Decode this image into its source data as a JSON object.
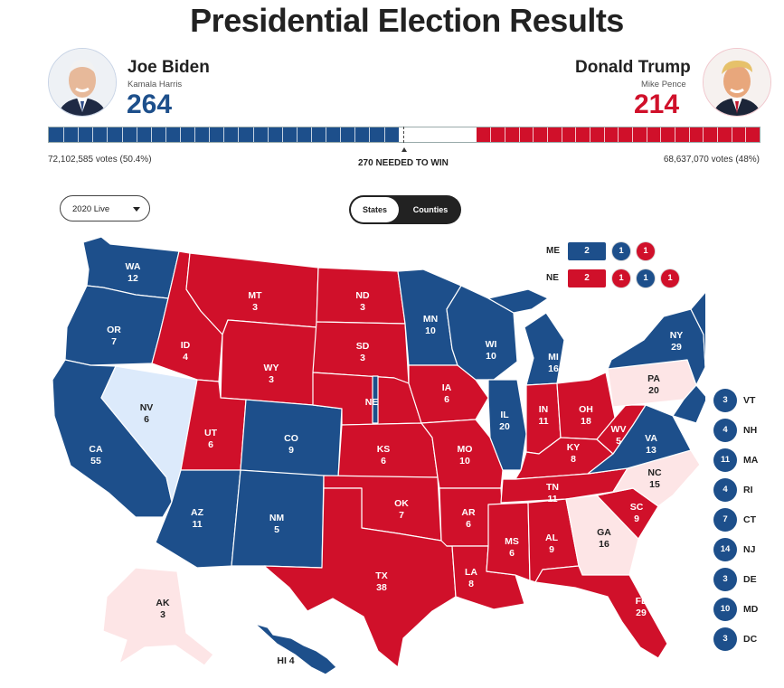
{
  "title": "Presidential Election Results",
  "colors": {
    "dem": "#1d4f8b",
    "rep": "#d0102a",
    "lean_dem": "#dceafb",
    "lean_rep": "#fde5e6"
  },
  "biden": {
    "name": "Joe Biden",
    "vp": "Kamala Harris",
    "electoral": "264",
    "votes": "72,102,585 votes (50.4%)",
    "photo_icon": "biden-portrait"
  },
  "trump": {
    "name": "Donald Trump",
    "vp": "Mike Pence",
    "electoral": "214",
    "votes": "68,637,070 votes (48%)",
    "photo_icon": "trump-portrait"
  },
  "progress": {
    "dem_ev": 264,
    "rep_ev": 214,
    "total_ev": 538,
    "needed": 270
  },
  "needed_label": "270 NEEDED TO WIN",
  "year_select": "2020 Live",
  "toggle": {
    "states": "States",
    "counties": "Counties"
  },
  "states": {
    "WA": {
      "label": "WA",
      "ev": "12"
    },
    "OR": {
      "label": "OR",
      "ev": "7"
    },
    "CA": {
      "label": "CA",
      "ev": "55"
    },
    "NV": {
      "label": "NV",
      "ev": "6"
    },
    "ID": {
      "label": "ID",
      "ev": "4"
    },
    "MT": {
      "label": "MT",
      "ev": "3"
    },
    "WY": {
      "label": "WY",
      "ev": "3"
    },
    "UT": {
      "label": "UT",
      "ev": "6"
    },
    "AZ": {
      "label": "AZ",
      "ev": "11"
    },
    "CO": {
      "label": "CO",
      "ev": "9"
    },
    "NM": {
      "label": "NM",
      "ev": "5"
    },
    "ND": {
      "label": "ND",
      "ev": "3"
    },
    "SD": {
      "label": "SD",
      "ev": "3"
    },
    "NE": {
      "label": "NE",
      "ev": ""
    },
    "KS": {
      "label": "KS",
      "ev": "6"
    },
    "OK": {
      "label": "OK",
      "ev": "7"
    },
    "TX": {
      "label": "TX",
      "ev": "38"
    },
    "MN": {
      "label": "MN",
      "ev": "10"
    },
    "IA": {
      "label": "IA",
      "ev": "6"
    },
    "MO": {
      "label": "MO",
      "ev": "10"
    },
    "AR": {
      "label": "AR",
      "ev": "6"
    },
    "LA": {
      "label": "LA",
      "ev": "8"
    },
    "WI": {
      "label": "WI",
      "ev": "10"
    },
    "IL": {
      "label": "IL",
      "ev": "20"
    },
    "MI": {
      "label": "MI",
      "ev": "16"
    },
    "IN": {
      "label": "IN",
      "ev": "11"
    },
    "OH": {
      "label": "OH",
      "ev": "18"
    },
    "KY": {
      "label": "KY",
      "ev": "8"
    },
    "TN": {
      "label": "TN",
      "ev": "11"
    },
    "MS": {
      "label": "MS",
      "ev": "6"
    },
    "AL": {
      "label": "AL",
      "ev": "9"
    },
    "GA": {
      "label": "GA",
      "ev": "16"
    },
    "FL": {
      "label": "FL",
      "ev": "29"
    },
    "SC": {
      "label": "SC",
      "ev": "9"
    },
    "NC": {
      "label": "NC",
      "ev": "15"
    },
    "VA": {
      "label": "VA",
      "ev": "13"
    },
    "WV": {
      "label": "WV",
      "ev": "5"
    },
    "PA": {
      "label": "PA",
      "ev": "20"
    },
    "NY": {
      "label": "NY",
      "ev": "29"
    },
    "ME": {
      "label": "ME",
      "ev": ""
    },
    "AK": {
      "label": "AK",
      "ev": "3"
    },
    "HI": {
      "label": "HI 4",
      "ev": ""
    }
  },
  "split_states": [
    {
      "name": "ME",
      "statewide": "2",
      "districts": [
        "1",
        "1"
      ],
      "statewide_party": "dem",
      "district_parties": [
        "dem",
        "rep"
      ]
    },
    {
      "name": "NE",
      "statewide": "2",
      "districts": [
        "1",
        "1",
        "1"
      ],
      "statewide_party": "rep",
      "district_parties": [
        "rep",
        "dem",
        "rep"
      ]
    }
  ],
  "small_states": [
    {
      "name": "VT",
      "ev": "3"
    },
    {
      "name": "NH",
      "ev": "4"
    },
    {
      "name": "MA",
      "ev": "11"
    },
    {
      "name": "RI",
      "ev": "4"
    },
    {
      "name": "CT",
      "ev": "7"
    },
    {
      "name": "NJ",
      "ev": "14"
    },
    {
      "name": "DE",
      "ev": "3"
    },
    {
      "name": "MD",
      "ev": "10"
    },
    {
      "name": "DC",
      "ev": "3"
    }
  ]
}
